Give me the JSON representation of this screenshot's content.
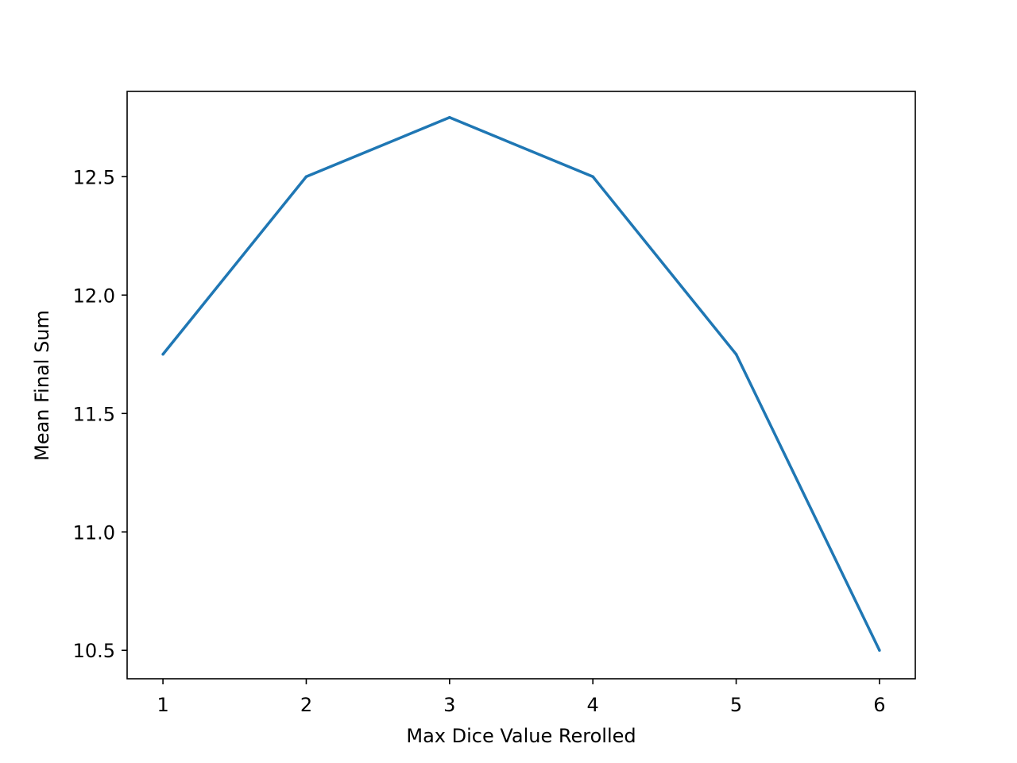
{
  "chart_data": {
    "type": "line",
    "title": "",
    "xlabel": "Max Dice Value Rerolled",
    "ylabel": "Mean Final Sum",
    "x": [
      1,
      2,
      3,
      4,
      5,
      6
    ],
    "series": [
      {
        "values": [
          11.75,
          12.5,
          12.75,
          12.5,
          11.75,
          10.5
        ],
        "color": "#1f77b4"
      }
    ],
    "xlim": [
      0.75,
      6.25
    ],
    "ylim": [
      10.38,
      12.86
    ],
    "xticks": [
      1,
      2,
      3,
      4,
      5,
      6
    ],
    "xtick_labels": [
      "1",
      "2",
      "3",
      "4",
      "5",
      "6"
    ],
    "yticks": [
      10.5,
      11.0,
      11.5,
      12.0,
      12.5
    ],
    "ytick_labels": [
      "10.5",
      "11.0",
      "11.5",
      "12.0",
      "12.5"
    ],
    "grid": false,
    "legend": "none"
  }
}
